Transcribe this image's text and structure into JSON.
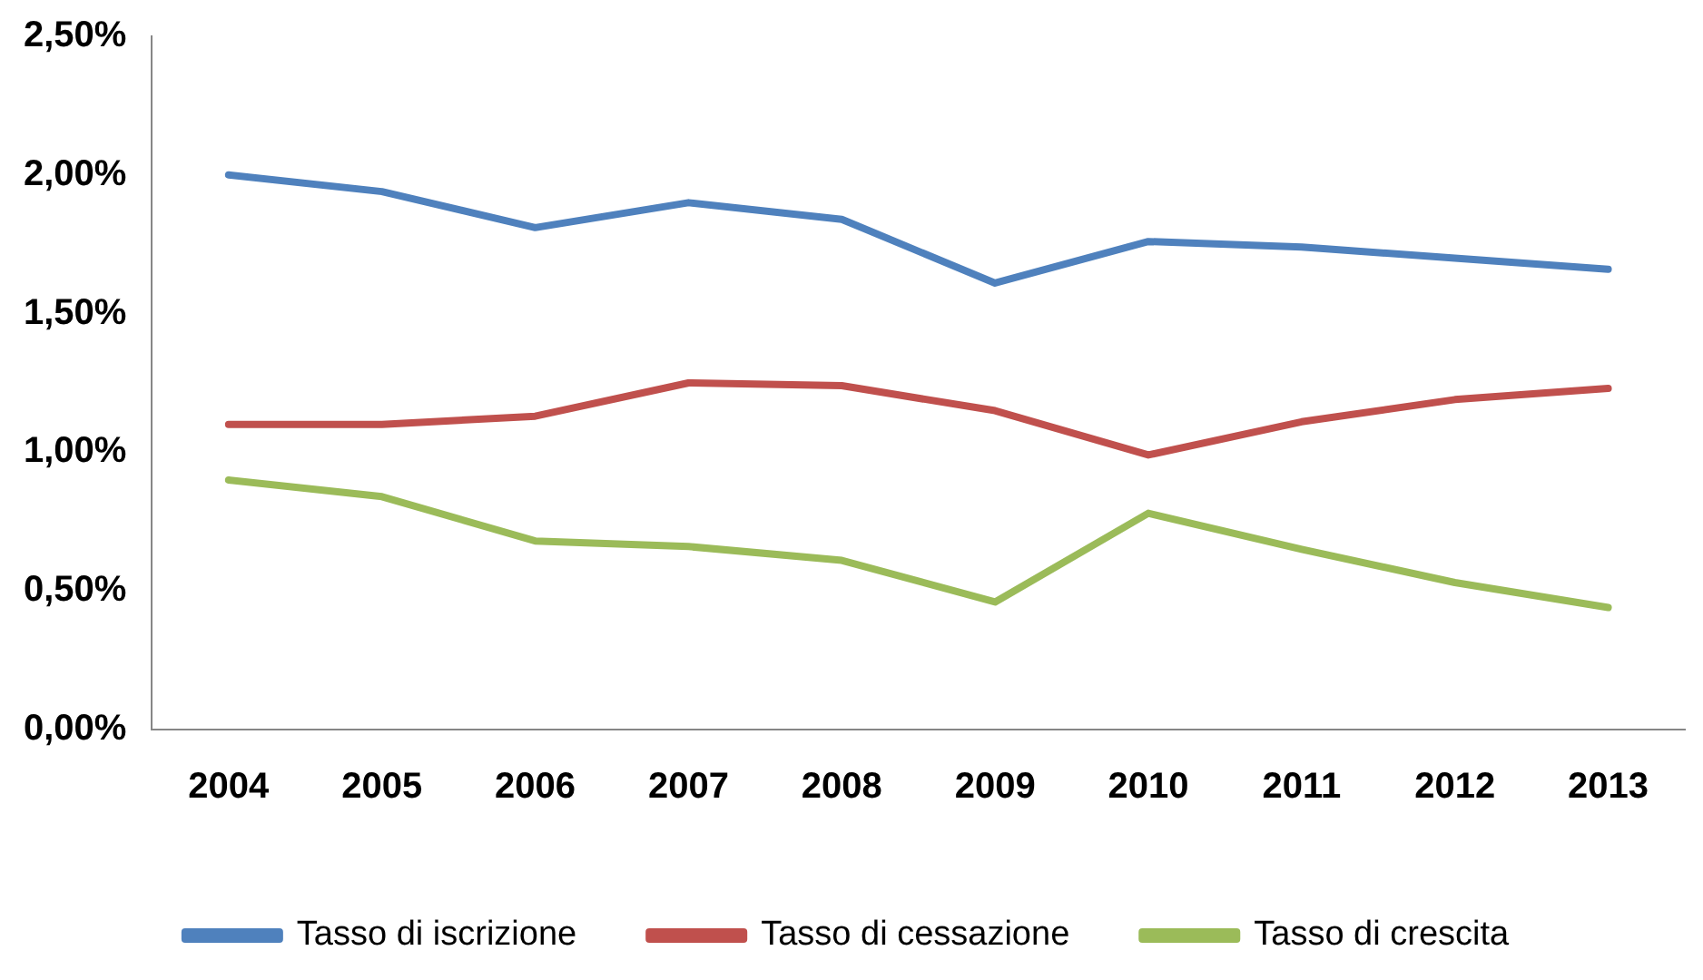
{
  "chart_data": {
    "type": "line",
    "categories": [
      "2004",
      "2005",
      "2006",
      "2007",
      "2008",
      "2009",
      "2010",
      "2011",
      "2012",
      "2013"
    ],
    "series": [
      {
        "name": "Tasso di iscrizione",
        "color": "#4f81bd",
        "values": [
          2.0,
          1.94,
          1.81,
          1.9,
          1.84,
          1.61,
          1.76,
          1.74,
          1.7,
          1.66
        ]
      },
      {
        "name": "Tasso di cessazione",
        "color": "#c0504d",
        "values": [
          1.1,
          1.1,
          1.13,
          1.25,
          1.24,
          1.15,
          0.99,
          1.11,
          1.19,
          1.23
        ]
      },
      {
        "name": "Tasso di crescita",
        "color": "#9bbb59",
        "values": [
          0.9,
          0.84,
          0.68,
          0.66,
          0.61,
          0.46,
          0.78,
          0.65,
          0.53,
          0.44
        ]
      }
    ],
    "ylim": [
      0,
      2.5
    ],
    "yticks": [
      {
        "value": 0,
        "label": "0,00%"
      },
      {
        "value": 0.5,
        "label": "0,50%"
      },
      {
        "value": 1,
        "label": "1,00%"
      },
      {
        "value": 1.5,
        "label": "1,50%"
      },
      {
        "value": 2,
        "label": "2,00%"
      },
      {
        "value": 2.5,
        "label": "2,50%"
      }
    ],
    "grid": false,
    "legend": "bottom",
    "marker": "none",
    "line_style": "solid"
  }
}
